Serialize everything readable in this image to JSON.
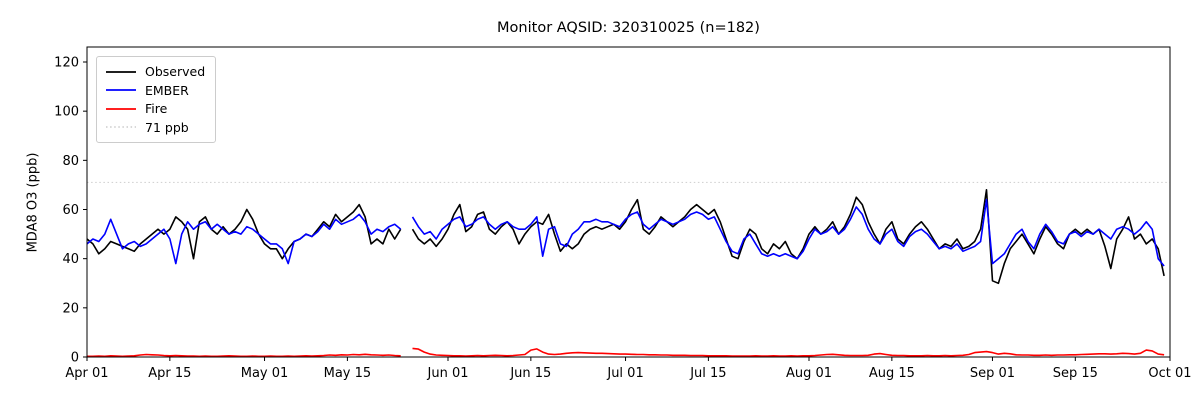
{
  "chart_data": {
    "type": "line",
    "title": "Monitor AQSID: 320310025 (n=182)",
    "xlabel": "",
    "ylabel": "MDA8 O3 (ppb)",
    "ylim": [
      0,
      126
    ],
    "yticks": [
      0,
      20,
      40,
      60,
      80,
      100,
      120
    ],
    "x_axis": {
      "unit": "day index from Apr 01",
      "n_days": 183,
      "ticks": [
        {
          "label": "Apr 01",
          "day": 0
        },
        {
          "label": "Apr 15",
          "day": 14
        },
        {
          "label": "May 01",
          "day": 30
        },
        {
          "label": "May 15",
          "day": 44
        },
        {
          "label": "Jun 01",
          "day": 61
        },
        {
          "label": "Jun 15",
          "day": 75
        },
        {
          "label": "Jul 01",
          "day": 91
        },
        {
          "label": "Jul 15",
          "day": 105
        },
        {
          "label": "Aug 01",
          "day": 122
        },
        {
          "label": "Aug 15",
          "day": 136
        },
        {
          "label": "Sep 01",
          "day": 153
        },
        {
          "label": "Sep 15",
          "day": 167
        },
        {
          "label": "Oct 01",
          "day": 183
        }
      ]
    },
    "missing_day_index": 54,
    "n_points": 182,
    "grid": false,
    "reference_line": {
      "value": 71,
      "label": "71 ppb",
      "color": "#d3d3d3",
      "style": "dotted"
    },
    "legend": {
      "position": "upper left",
      "entries": [
        {
          "label": "Observed",
          "color": "#000000",
          "style": "solid"
        },
        {
          "label": "EMBER",
          "color": "#0000ff",
          "style": "solid"
        },
        {
          "label": "Fire",
          "color": "#ff0000",
          "style": "solid"
        },
        {
          "label": "71 ppb",
          "color": "#d3d3d3",
          "style": "dotted"
        }
      ]
    },
    "series": [
      {
        "name": "Observed",
        "color": "#000000",
        "values": [
          48,
          46,
          42,
          44,
          47,
          46,
          45,
          44,
          43,
          46,
          48,
          50,
          52,
          50,
          52,
          57,
          55,
          52,
          40,
          55,
          57,
          52,
          50,
          53,
          50,
          52,
          55,
          60,
          56,
          50,
          46,
          44,
          44,
          40,
          44,
          47,
          48,
          50,
          49,
          52,
          55,
          53,
          58,
          55,
          57,
          59,
          62,
          57,
          46,
          48,
          46,
          52,
          48,
          52,
          null,
          52,
          48,
          46,
          48,
          45,
          48,
          52,
          58,
          62,
          51,
          53,
          58,
          59,
          52,
          50,
          53,
          55,
          52,
          46,
          50,
          53,
          55,
          54,
          58,
          50,
          43,
          46,
          44,
          46,
          50,
          52,
          53,
          52,
          53,
          54,
          52,
          55,
          60,
          64,
          52,
          50,
          53,
          57,
          55,
          53,
          55,
          57,
          60,
          62,
          60,
          58,
          60,
          55,
          48,
          41,
          40,
          47,
          52,
          50,
          44,
          42,
          46,
          44,
          47,
          42,
          40,
          44,
          50,
          53,
          50,
          52,
          55,
          50,
          53,
          58,
          65,
          62,
          55,
          50,
          46,
          52,
          55,
          48,
          46,
          50,
          53,
          55,
          52,
          48,
          44,
          46,
          45,
          48,
          44,
          45,
          47,
          52,
          68,
          31,
          30,
          38,
          44,
          47,
          50,
          46,
          42,
          48,
          53,
          50,
          46,
          44,
          50,
          52,
          50,
          52,
          50,
          52,
          45,
          36,
          48,
          52,
          57,
          48,
          50,
          46,
          48,
          44,
          33
        ]
      },
      {
        "name": "EMBER",
        "color": "#0000ff",
        "values": [
          46,
          48,
          47,
          50,
          56,
          50,
          44,
          46,
          47,
          45,
          46,
          48,
          50,
          52,
          48,
          38,
          50,
          55,
          52,
          54,
          55,
          52,
          54,
          52,
          50,
          51,
          50,
          53,
          52,
          50,
          48,
          46,
          46,
          44,
          38,
          47,
          48,
          50,
          49,
          51,
          54,
          52,
          56,
          54,
          55,
          56,
          58,
          55,
          50,
          52,
          51,
          53,
          54,
          52,
          null,
          57,
          53,
          50,
          51,
          48,
          52,
          54,
          56,
          57,
          53,
          54,
          56,
          57,
          54,
          52,
          54,
          55,
          53,
          52,
          52,
          54,
          57,
          41,
          52,
          53,
          46,
          45,
          50,
          52,
          55,
          55,
          56,
          55,
          55,
          54,
          53,
          56,
          58,
          59,
          54,
          52,
          54,
          56,
          55,
          54,
          55,
          56,
          58,
          59,
          58,
          56,
          57,
          52,
          47,
          43,
          42,
          48,
          50,
          46,
          42,
          41,
          42,
          41,
          42,
          41,
          40,
          43,
          48,
          52,
          50,
          51,
          53,
          50,
          52,
          56,
          61,
          58,
          52,
          48,
          46,
          50,
          52,
          47,
          45,
          49,
          51,
          52,
          50,
          47,
          44,
          45,
          44,
          46,
          43,
          44,
          45,
          47,
          64,
          38,
          40,
          42,
          46,
          50,
          52,
          47,
          44,
          50,
          54,
          51,
          47,
          46,
          50,
          51,
          49,
          51,
          50,
          52,
          50,
          48,
          52,
          53,
          52,
          50,
          52,
          55,
          52,
          40,
          37
        ]
      },
      {
        "name": "Fire",
        "color": "#ff0000",
        "values": [
          0.3,
          0.3,
          0.4,
          0.3,
          0.5,
          0.4,
          0.3,
          0.4,
          0.5,
          0.8,
          1.0,
          0.9,
          0.8,
          0.6,
          0.5,
          0.6,
          0.5,
          0.4,
          0.4,
          0.3,
          0.4,
          0.3,
          0.3,
          0.4,
          0.5,
          0.4,
          0.3,
          0.3,
          0.4,
          0.3,
          0.3,
          0.4,
          0.3,
          0.3,
          0.4,
          0.3,
          0.4,
          0.5,
          0.4,
          0.5,
          0.6,
          0.8,
          0.7,
          0.9,
          0.8,
          1.0,
          0.9,
          1.1,
          0.9,
          0.8,
          0.7,
          0.8,
          0.6,
          0.5,
          null,
          3.5,
          3.2,
          2.0,
          1.2,
          0.8,
          0.7,
          0.6,
          0.5,
          0.5,
          0.4,
          0.5,
          0.6,
          0.5,
          0.6,
          0.7,
          0.6,
          0.5,
          0.6,
          0.8,
          1.0,
          2.8,
          3.3,
          2.0,
          1.2,
          1.0,
          1.2,
          1.5,
          1.7,
          1.8,
          1.7,
          1.6,
          1.5,
          1.5,
          1.4,
          1.3,
          1.2,
          1.2,
          1.1,
          1.0,
          1.0,
          0.9,
          0.9,
          0.8,
          0.8,
          0.7,
          0.7,
          0.7,
          0.6,
          0.6,
          0.6,
          0.5,
          0.5,
          0.5,
          0.5,
          0.4,
          0.4,
          0.4,
          0.4,
          0.5,
          0.4,
          0.4,
          0.5,
          0.4,
          0.4,
          0.5,
          0.4,
          0.5,
          0.5,
          0.6,
          0.8,
          1.0,
          1.1,
          0.9,
          0.7,
          0.6,
          0.6,
          0.6,
          0.7,
          1.2,
          1.4,
          1.0,
          0.7,
          0.6,
          0.6,
          0.5,
          0.5,
          0.5,
          0.6,
          0.5,
          0.5,
          0.6,
          0.5,
          0.6,
          0.7,
          1.0,
          1.8,
          2.0,
          2.2,
          1.8,
          1.2,
          1.5,
          1.3,
          0.9,
          0.8,
          0.8,
          0.7,
          0.7,
          0.8,
          0.7,
          0.8,
          0.8,
          0.9,
          0.9,
          1.0,
          1.1,
          1.2,
          1.3,
          1.3,
          1.2,
          1.3,
          1.5,
          1.4,
          1.2,
          1.5,
          2.8,
          2.5,
          1.2,
          0.9
        ]
      }
    ]
  }
}
